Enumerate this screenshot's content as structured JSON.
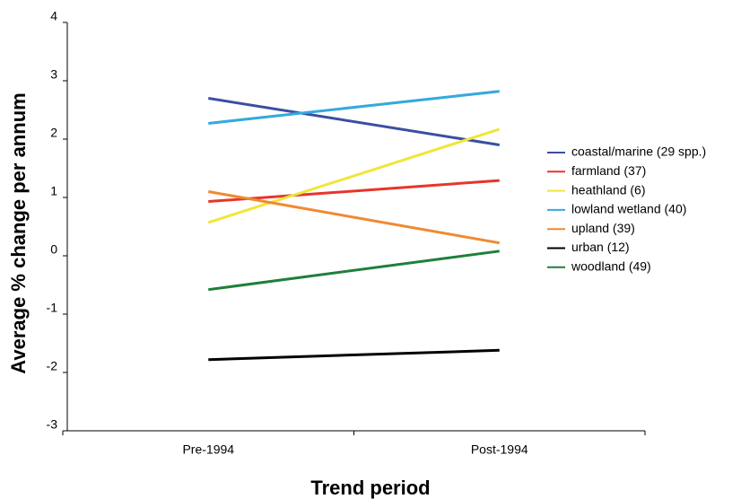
{
  "chart_data": {
    "type": "line",
    "x_label": "Trend period",
    "y_label": "Average % change per annum",
    "categories": [
      "Pre-1994",
      "Post-1994"
    ],
    "series": [
      {
        "name": "coastal/marine (29 spp.)",
        "color": "#3b4fa0",
        "values": [
          2.7,
          1.9
        ]
      },
      {
        "name": "farmland (37)",
        "color": "#e8352a",
        "values": [
          0.93,
          1.29
        ]
      },
      {
        "name": "heathland (6)",
        "color": "#f0e63a",
        "values": [
          0.57,
          2.17
        ]
      },
      {
        "name": "lowland wetland (40)",
        "color": "#35a9dc",
        "values": [
          2.27,
          2.82
        ]
      },
      {
        "name": "upland (39)",
        "color": "#f08a30",
        "values": [
          1.1,
          0.22
        ]
      },
      {
        "name": "urban (12)",
        "color": "#000000",
        "values": [
          -1.78,
          -1.62
        ]
      },
      {
        "name": "woodland (49)",
        "color": "#1e7f3a",
        "values": [
          -0.58,
          0.08
        ]
      }
    ],
    "ylim": [
      -3,
      4
    ],
    "yticks": [
      -3,
      -2,
      -1,
      0,
      1,
      2,
      3,
      4
    ],
    "grid": false,
    "legend": "right"
  }
}
